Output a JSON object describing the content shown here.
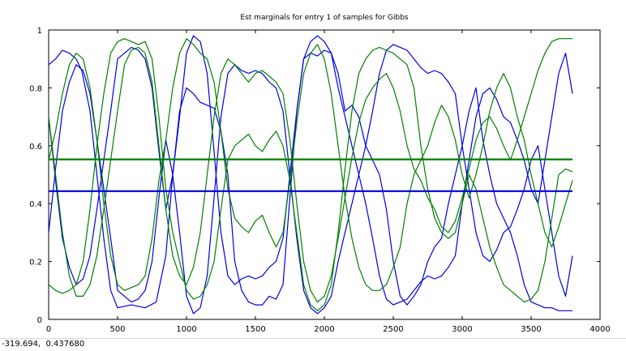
{
  "window": {
    "coordinate_readout": "-319.694,  0.437680"
  },
  "chart_data": {
    "type": "line",
    "title": "Est marginals for entry 1 of samples for Gibbs",
    "xlabel": "",
    "ylabel": "",
    "xlim": [
      0,
      4000
    ],
    "ylim": [
      0,
      1
    ],
    "x_ticks": [
      0,
      500,
      1000,
      1500,
      2000,
      2500,
      3000,
      3500,
      4000
    ],
    "y_ticks": [
      0,
      0.2,
      0.4,
      0.6,
      0.8,
      1
    ],
    "x_tick_labels": [
      "0",
      "500",
      "1000",
      "1500",
      "2000",
      "2500",
      "3000",
      "3500",
      "4000"
    ],
    "y_tick_labels": [
      "0",
      "0.2",
      "0.4",
      "0.6",
      "0.8",
      "1"
    ],
    "grid": false,
    "legend": "none",
    "colors": {
      "blue": "#0000dd",
      "green": "#007f00"
    },
    "series": [
      {
        "color": "#0000dd",
        "width": 1.2,
        "x": [
          0,
          50,
          100,
          150,
          200,
          240,
          300,
          350,
          400,
          450,
          500,
          600,
          700,
          780,
          850,
          900,
          950,
          1000,
          1050,
          1100,
          1150,
          1200,
          1250,
          1300,
          1350,
          1400,
          1450,
          1500,
          1550,
          1600,
          1650,
          1700,
          1750,
          1800,
          1850,
          1900,
          1950,
          2000,
          2050,
          2100,
          2150,
          2200,
          2250,
          2300,
          2350,
          2400,
          2450,
          2500,
          2550,
          2600,
          2650,
          2700,
          2750,
          2800,
          2850,
          2900,
          2950,
          3000,
          3050,
          3100,
          3150,
          3200,
          3250,
          3300,
          3350,
          3400,
          3450,
          3500,
          3550,
          3600,
          3650,
          3700,
          3750,
          3800
        ],
        "y": [
          0.88,
          0.9,
          0.93,
          0.92,
          0.9,
          0.86,
          0.72,
          0.5,
          0.28,
          0.1,
          0.04,
          0.05,
          0.04,
          0.06,
          0.22,
          0.5,
          0.72,
          0.8,
          0.78,
          0.75,
          0.74,
          0.73,
          0.65,
          0.5,
          0.2,
          0.1,
          0.06,
          0.05,
          0.05,
          0.08,
          0.07,
          0.12,
          0.42,
          0.72,
          0.9,
          0.92,
          0.91,
          0.93,
          0.92,
          0.85,
          0.72,
          0.74,
          0.7,
          0.6,
          0.55,
          0.5,
          0.38,
          0.2,
          0.08,
          0.05,
          0.08,
          0.12,
          0.2,
          0.25,
          0.28,
          0.4,
          0.5,
          0.6,
          0.72,
          0.8,
          0.62,
          0.5,
          0.4,
          0.35,
          0.3,
          0.22,
          0.12,
          0.06,
          0.05,
          0.04,
          0.04,
          0.03,
          0.03,
          0.03
        ]
      },
      {
        "color": "#0000dd",
        "width": 1.2,
        "x": [
          0,
          50,
          100,
          150,
          200,
          250,
          300,
          350,
          400,
          450,
          500,
          550,
          600,
          650,
          700,
          750,
          800,
          850,
          900,
          950,
          1000,
          1050,
          1100,
          1150,
          1200,
          1250,
          1300,
          1350,
          1400,
          1450,
          1500,
          1550,
          1600,
          1650,
          1700,
          1750,
          1800,
          1850,
          1900,
          1950,
          2000,
          2050,
          2100,
          2150,
          2200,
          2250,
          2300,
          2350,
          2400,
          2450,
          2500,
          2550,
          2600,
          2650,
          2700,
          2750,
          2800,
          2850,
          2900,
          2950,
          3000,
          3050,
          3100,
          3150,
          3200,
          3250,
          3300,
          3350,
          3400,
          3450,
          3500,
          3550,
          3600,
          3650,
          3700,
          3750,
          3800
        ],
        "y": [
          0.3,
          0.52,
          0.72,
          0.82,
          0.88,
          0.86,
          0.78,
          0.62,
          0.45,
          0.28,
          0.1,
          0.08,
          0.06,
          0.07,
          0.1,
          0.2,
          0.42,
          0.62,
          0.5,
          0.3,
          0.08,
          0.02,
          0.04,
          0.15,
          0.42,
          0.7,
          0.85,
          0.88,
          0.86,
          0.85,
          0.86,
          0.85,
          0.82,
          0.8,
          0.72,
          0.5,
          0.28,
          0.1,
          0.04,
          0.02,
          0.04,
          0.08,
          0.2,
          0.3,
          0.4,
          0.5,
          0.6,
          0.72,
          0.85,
          0.93,
          0.95,
          0.94,
          0.93,
          0.9,
          0.87,
          0.85,
          0.86,
          0.85,
          0.82,
          0.78,
          0.6,
          0.45,
          0.3,
          0.22,
          0.2,
          0.24,
          0.3,
          0.32,
          0.38,
          0.45,
          0.55,
          0.6,
          0.45,
          0.3,
          0.15,
          0.08,
          0.22
        ]
      },
      {
        "color": "#0000dd",
        "width": 1.2,
        "x": [
          0,
          50,
          100,
          150,
          200,
          250,
          300,
          350,
          400,
          450,
          500,
          550,
          600,
          650,
          700,
          750,
          800,
          850,
          900,
          950,
          1000,
          1050,
          1100,
          1150,
          1200,
          1250,
          1300,
          1350,
          1400,
          1450,
          1500,
          1550,
          1600,
          1650,
          1700,
          1750,
          1800,
          1850,
          1900,
          1950,
          2000,
          2050,
          2100,
          2150,
          2200,
          2250,
          2300,
          2350,
          2400,
          2450,
          2500,
          2550,
          2600,
          2650,
          2700,
          2750,
          2800,
          2850,
          2900,
          2950,
          3000,
          3050,
          3100,
          3150,
          3200,
          3250,
          3300,
          3350,
          3400,
          3450,
          3500,
          3550,
          3600,
          3650,
          3700,
          3750,
          3800
        ],
        "y": [
          0.7,
          0.48,
          0.28,
          0.18,
          0.12,
          0.14,
          0.22,
          0.38,
          0.55,
          0.72,
          0.9,
          0.92,
          0.94,
          0.93,
          0.9,
          0.8,
          0.58,
          0.38,
          0.5,
          0.7,
          0.92,
          0.98,
          0.96,
          0.85,
          0.58,
          0.3,
          0.15,
          0.12,
          0.14,
          0.15,
          0.14,
          0.15,
          0.18,
          0.2,
          0.28,
          0.5,
          0.72,
          0.9,
          0.96,
          0.98,
          0.96,
          0.92,
          0.8,
          0.7,
          0.6,
          0.5,
          0.4,
          0.28,
          0.15,
          0.07,
          0.05,
          0.06,
          0.07,
          0.1,
          0.13,
          0.15,
          0.14,
          0.15,
          0.18,
          0.22,
          0.4,
          0.55,
          0.7,
          0.78,
          0.8,
          0.76,
          0.7,
          0.68,
          0.62,
          0.55,
          0.45,
          0.4,
          0.55,
          0.7,
          0.85,
          0.92,
          0.78
        ]
      },
      {
        "color": "#007f00",
        "width": 1.2,
        "x": [
          0,
          50,
          100,
          150,
          200,
          250,
          300,
          350,
          400,
          450,
          500,
          550,
          600,
          650,
          700,
          750,
          800,
          850,
          900,
          950,
          1000,
          1050,
          1100,
          1150,
          1200,
          1250,
          1300,
          1350,
          1400,
          1450,
          1500,
          1550,
          1600,
          1650,
          1700,
          1750,
          1800,
          1850,
          1900,
          1950,
          2000,
          2050,
          2100,
          2150,
          2200,
          2250,
          2300,
          2350,
          2400,
          2450,
          2500,
          2550,
          2600,
          2650,
          2700,
          2750,
          2800,
          2850,
          2900,
          2950,
          3000,
          3050,
          3100,
          3150,
          3200,
          3250,
          3300,
          3350,
          3400,
          3450,
          3500,
          3550,
          3600,
          3650,
          3700,
          3750,
          3800
        ],
        "y": [
          0.12,
          0.1,
          0.09,
          0.1,
          0.12,
          0.2,
          0.38,
          0.6,
          0.78,
          0.92,
          0.96,
          0.97,
          0.96,
          0.95,
          0.96,
          0.9,
          0.7,
          0.45,
          0.3,
          0.2,
          0.1,
          0.07,
          0.08,
          0.12,
          0.2,
          0.38,
          0.55,
          0.6,
          0.62,
          0.64,
          0.6,
          0.58,
          0.62,
          0.65,
          0.6,
          0.48,
          0.3,
          0.12,
          0.05,
          0.03,
          0.05,
          0.12,
          0.3,
          0.52,
          0.72,
          0.85,
          0.9,
          0.93,
          0.94,
          0.93,
          0.92,
          0.9,
          0.88,
          0.8,
          0.6,
          0.45,
          0.35,
          0.3,
          0.28,
          0.3,
          0.4,
          0.5,
          0.45,
          0.35,
          0.25,
          0.18,
          0.12,
          0.1,
          0.08,
          0.06,
          0.07,
          0.1,
          0.2,
          0.35,
          0.5,
          0.52,
          0.51
        ]
      },
      {
        "color": "#007f00",
        "width": 1.2,
        "x": [
          0,
          50,
          100,
          150,
          200,
          250,
          300,
          350,
          400,
          450,
          500,
          550,
          600,
          650,
          700,
          750,
          800,
          850,
          900,
          950,
          1000,
          1050,
          1100,
          1150,
          1200,
          1250,
          1300,
          1350,
          1400,
          1450,
          1500,
          1550,
          1600,
          1650,
          1700,
          1750,
          1800,
          1850,
          1900,
          1950,
          2000,
          2050,
          2100,
          2150,
          2200,
          2250,
          2300,
          2350,
          2400,
          2450,
          2500,
          2550,
          2600,
          2650,
          2700,
          2750,
          2800,
          2850,
          2900,
          2950,
          3000,
          3050,
          3100,
          3150,
          3200,
          3250,
          3300,
          3350,
          3400,
          3450,
          3500,
          3550,
          3600,
          3650,
          3700,
          3750,
          3800
        ],
        "y": [
          0.55,
          0.65,
          0.78,
          0.88,
          0.92,
          0.9,
          0.8,
          0.62,
          0.4,
          0.22,
          0.12,
          0.1,
          0.11,
          0.12,
          0.15,
          0.28,
          0.48,
          0.62,
          0.8,
          0.92,
          0.97,
          0.95,
          0.92,
          0.9,
          0.82,
          0.65,
          0.45,
          0.35,
          0.32,
          0.3,
          0.34,
          0.36,
          0.3,
          0.25,
          0.3,
          0.48,
          0.68,
          0.85,
          0.92,
          0.95,
          0.9,
          0.78,
          0.6,
          0.42,
          0.28,
          0.18,
          0.12,
          0.1,
          0.1,
          0.12,
          0.18,
          0.25,
          0.4,
          0.5,
          0.55,
          0.6,
          0.68,
          0.74,
          0.7,
          0.62,
          0.5,
          0.42,
          0.5,
          0.6,
          0.72,
          0.8,
          0.85,
          0.8,
          0.7,
          0.62,
          0.5,
          0.4,
          0.3,
          0.25,
          0.32,
          0.4,
          0.48
        ]
      },
      {
        "color": "#007f00",
        "width": 1.2,
        "x": [
          0,
          50,
          100,
          150,
          200,
          250,
          300,
          350,
          400,
          450,
          500,
          550,
          600,
          650,
          700,
          750,
          800,
          850,
          900,
          950,
          1000,
          1050,
          1100,
          1150,
          1200,
          1250,
          1300,
          1350,
          1400,
          1450,
          1500,
          1550,
          1600,
          1650,
          1700,
          1750,
          1800,
          1850,
          1900,
          1950,
          2000,
          2050,
          2100,
          2150,
          2200,
          2250,
          2300,
          2350,
          2400,
          2450,
          2500,
          2550,
          2600,
          2650,
          2700,
          2750,
          2800,
          2850,
          2900,
          2950,
          3000,
          3050,
          3100,
          3150,
          3200,
          3250,
          3300,
          3350,
          3400,
          3450,
          3500,
          3550,
          3600,
          3650,
          3700,
          3750,
          3800
        ],
        "y": [
          0.7,
          0.5,
          0.3,
          0.15,
          0.08,
          0.08,
          0.12,
          0.22,
          0.38,
          0.55,
          0.72,
          0.88,
          0.93,
          0.94,
          0.92,
          0.82,
          0.6,
          0.38,
          0.22,
          0.15,
          0.12,
          0.18,
          0.3,
          0.5,
          0.7,
          0.85,
          0.9,
          0.88,
          0.85,
          0.82,
          0.85,
          0.86,
          0.84,
          0.82,
          0.78,
          0.62,
          0.4,
          0.2,
          0.1,
          0.06,
          0.08,
          0.15,
          0.28,
          0.42,
          0.56,
          0.68,
          0.76,
          0.8,
          0.83,
          0.85,
          0.8,
          0.72,
          0.6,
          0.52,
          0.48,
          0.42,
          0.38,
          0.32,
          0.3,
          0.34,
          0.42,
          0.52,
          0.62,
          0.68,
          0.7,
          0.66,
          0.6,
          0.55,
          0.62,
          0.7,
          0.78,
          0.86,
          0.92,
          0.96,
          0.97,
          0.97,
          0.97
        ]
      },
      {
        "color": "#007f00",
        "width": 2.2,
        "x": [
          0,
          3800
        ],
        "y": [
          0.553,
          0.553
        ]
      },
      {
        "color": "#0000dd",
        "width": 2.2,
        "x": [
          0,
          3800
        ],
        "y": [
          0.443,
          0.443
        ]
      }
    ]
  }
}
